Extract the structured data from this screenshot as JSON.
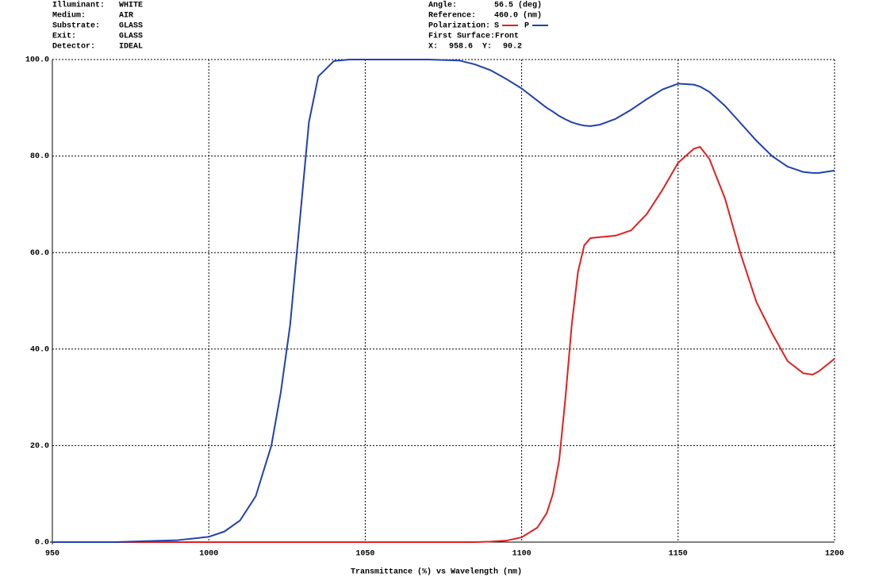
{
  "header": {
    "left": [
      {
        "label": "Illuminant:",
        "value": "WHITE"
      },
      {
        "label": "Medium:",
        "value": "AIR"
      },
      {
        "label": "Substrate:",
        "value": "GLASS"
      },
      {
        "label": "Exit:",
        "value": "GLASS"
      },
      {
        "label": "Detector:",
        "value": "IDEAL"
      }
    ],
    "right": [
      {
        "label": "Angle:",
        "value": "56.5 (deg)"
      },
      {
        "label": "Reference:",
        "value": "460.0 (nm)"
      }
    ],
    "surface": {
      "label": "First Surface:",
      "value": "Front"
    },
    "cursor": {
      "x_label": "X:",
      "x": 958.6,
      "y_label": "Y:",
      "y": 90.2
    }
  },
  "chart_data": {
    "type": "line",
    "x_label": "Transmittance (%)  vs  Wavelength (nm)",
    "legend_label": "Polarization:",
    "x": [
      950,
      960,
      970,
      980,
      990,
      1000,
      1005,
      1010,
      1015,
      1020,
      1023,
      1026,
      1029,
      1032,
      1035,
      1040,
      1045,
      1050,
      1060,
      1070,
      1080,
      1085,
      1090,
      1095,
      1100,
      1105,
      1108,
      1110,
      1112,
      1114,
      1116,
      1118,
      1120,
      1122,
      1125,
      1130,
      1135,
      1140,
      1145,
      1150,
      1155,
      1157,
      1160,
      1165,
      1170,
      1175,
      1180,
      1185,
      1190,
      1193,
      1195,
      1200
    ],
    "series": [
      {
        "name": "S",
        "color": "#e02020",
        "values": [
          0,
          0,
          0,
          0,
          0,
          0,
          0,
          0,
          0,
          0,
          0,
          0,
          0,
          0,
          0,
          0,
          0,
          0,
          0,
          0,
          0,
          0,
          0.1,
          0.3,
          1,
          3,
          6,
          10,
          17,
          30,
          45,
          56,
          61.5,
          63,
          63.2,
          63.5,
          64.6,
          68,
          73,
          78.6,
          81.5,
          81.9,
          79.4,
          71.2,
          59.7,
          49.8,
          43.3,
          37.5,
          35,
          34.7,
          35.4,
          38
        ]
      },
      {
        "name": "P",
        "color": "#2040b0",
        "values": [
          0,
          0,
          0,
          0.2,
          0.4,
          1.1,
          2.2,
          4.5,
          9.5,
          20,
          31,
          45,
          66,
          87,
          96.5,
          99.7,
          100,
          100,
          100,
          100,
          99.8,
          99,
          97.8,
          96,
          94,
          91.5,
          90,
          89.2,
          88.3,
          87.6,
          87,
          86.6,
          86.3,
          86.2,
          86.5,
          87.7,
          89.6,
          91.8,
          93.8,
          95,
          94.8,
          94.4,
          93.3,
          90.4,
          86.8,
          83.2,
          80,
          77.8,
          76.7,
          76.5,
          76.5,
          77
        ]
      }
    ],
    "xlim": [
      950,
      1200
    ],
    "xticks": [
      950,
      1000,
      1050,
      1100,
      1150,
      1200
    ],
    "ylim": [
      0,
      100
    ],
    "yticks": [
      {
        "value": 0,
        "label": "0.0"
      },
      {
        "value": 20,
        "label": "20.0"
      },
      {
        "value": 40,
        "label": "40.0"
      },
      {
        "value": 60,
        "label": "60.0"
      },
      {
        "value": 80,
        "label": "80.0"
      },
      {
        "value": 100,
        "label": "100.0"
      }
    ],
    "grid": true
  }
}
